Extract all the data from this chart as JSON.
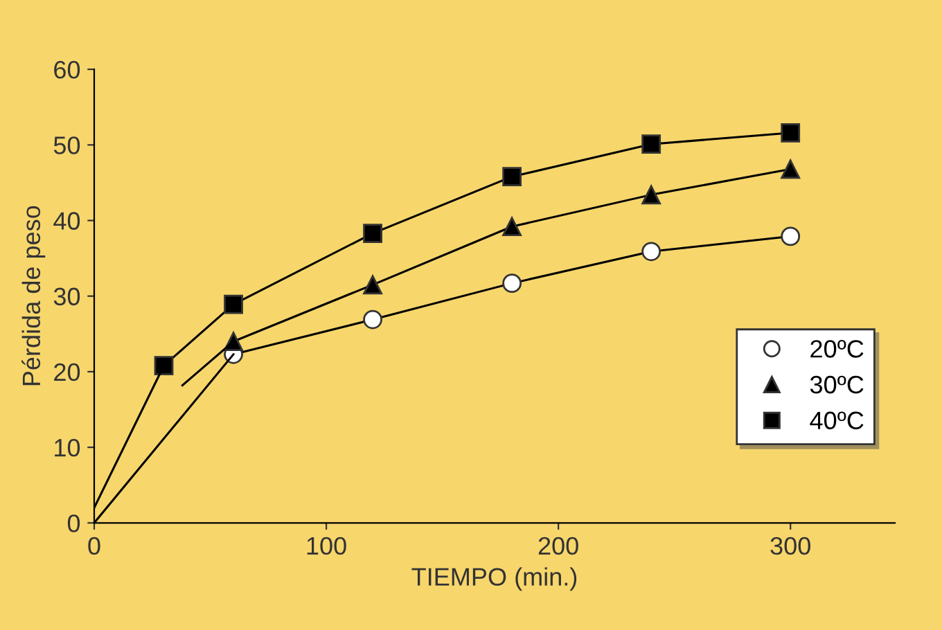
{
  "chart_data": {
    "type": "line",
    "xlabel": "TIEMPO (min.)",
    "ylabel": "Pérdida de peso",
    "xlim": [
      0,
      345
    ],
    "ylim": [
      0,
      60
    ],
    "xticks": [
      0,
      100,
      200,
      300
    ],
    "yticks": [
      0,
      10,
      20,
      30,
      40,
      50,
      60
    ],
    "grid": false,
    "legend": "right",
    "line_style": "solid",
    "series": [
      {
        "name": "20ºC",
        "color": "#000000",
        "marker": "circle",
        "x": [
          60,
          120,
          180,
          240,
          300
        ],
        "values": [
          22.3,
          26.9,
          31.7,
          35.9,
          37.9
        ]
      },
      {
        "name": "30ºC",
        "color": "#000000",
        "marker": "triangle",
        "x": [
          60,
          120,
          180,
          240,
          300
        ],
        "values": [
          24,
          31.5,
          39.2,
          43.4,
          46.8
        ]
      },
      {
        "name": "40ºC",
        "color": "#000000",
        "marker": "square",
        "x": [
          30,
          60,
          120,
          180,
          240,
          300
        ],
        "values": [
          20.8,
          28.9,
          38.3,
          45.8,
          50.1,
          51.6
        ]
      },
      {
        "color": "#000000",
        "marker": "none",
        "x": [
          0,
          60
        ],
        "values": [
          0,
          22.3
        ]
      },
      {
        "color": "#000000",
        "marker": "none",
        "x": [
          38,
          60
        ],
        "values": [
          18.2,
          24
        ]
      },
      {
        "color": "#000000",
        "marker": "none",
        "x": [
          0,
          30
        ],
        "values": [
          2,
          20.8
        ]
      }
    ]
  }
}
